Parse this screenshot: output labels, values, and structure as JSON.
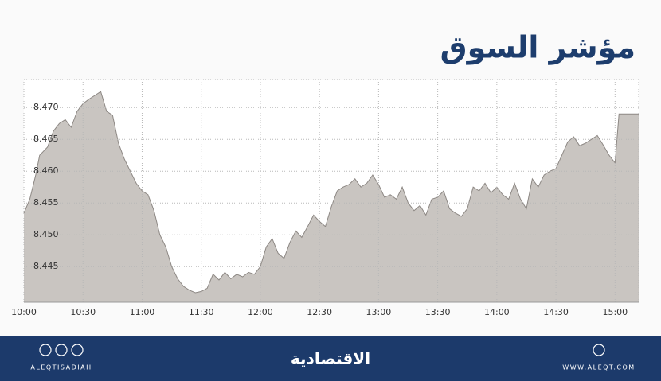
{
  "chart_data": {
    "type": "area",
    "title": "مؤشر السوق",
    "x": [
      "10:00",
      "10:03",
      "10:06",
      "10:08",
      "10:12",
      "10:15",
      "10:18",
      "10:21",
      "10:24",
      "10:27",
      "10:30",
      "10:33",
      "10:36",
      "10:39",
      "10:42",
      "10:45",
      "10:48",
      "10:51",
      "10:54",
      "10:57",
      "11:00",
      "11:03",
      "11:06",
      "11:09",
      "11:12",
      "11:15",
      "11:18",
      "11:21",
      "11:24",
      "11:27",
      "11:30",
      "11:33",
      "11:36",
      "11:39",
      "11:42",
      "11:45",
      "11:48",
      "11:51",
      "11:54",
      "11:57",
      "12:00",
      "12:03",
      "12:06",
      "12:09",
      "12:12",
      "12:15",
      "12:18",
      "12:21",
      "12:24",
      "12:27",
      "12:30",
      "12:33",
      "12:36",
      "12:39",
      "12:42",
      "12:45",
      "12:48",
      "12:51",
      "12:54",
      "12:57",
      "13:00",
      "13:03",
      "13:06",
      "13:09",
      "13:12",
      "13:15",
      "13:18",
      "13:21",
      "13:24",
      "13:27",
      "13:30",
      "13:33",
      "13:36",
      "13:39",
      "13:42",
      "13:45",
      "13:48",
      "13:51",
      "13:54",
      "13:57",
      "14:00",
      "14:03",
      "14:06",
      "14:09",
      "14:12",
      "14:15",
      "14:18",
      "14:21",
      "14:24",
      "14:27",
      "14:30",
      "14:33",
      "14:36",
      "14:39",
      "14:42",
      "14:45",
      "14:48",
      "14:51",
      "14:54",
      "14:57",
      "15:00",
      "15:02",
      "15:12"
    ],
    "values": [
      8.4534,
      8.4556,
      8.4594,
      8.4625,
      8.4638,
      8.4663,
      8.4675,
      8.4681,
      8.4669,
      8.4694,
      8.4706,
      8.4713,
      8.4719,
      8.4725,
      8.4694,
      8.4688,
      8.4644,
      8.4619,
      8.46,
      8.4581,
      8.4569,
      8.4563,
      8.4538,
      8.45,
      8.4481,
      8.445,
      8.4431,
      8.4419,
      8.4413,
      8.4409,
      8.4411,
      8.4416,
      8.4438,
      8.4429,
      8.4441,
      8.4431,
      8.4438,
      8.4434,
      8.4441,
      8.4438,
      8.445,
      8.4481,
      8.4494,
      8.4471,
      8.4463,
      8.4488,
      8.4506,
      8.4496,
      8.4513,
      8.4531,
      8.4521,
      8.4513,
      8.4544,
      8.4569,
      8.4575,
      8.4579,
      8.4588,
      8.4575,
      8.4581,
      8.4594,
      8.4579,
      8.4559,
      8.4563,
      8.4556,
      8.4575,
      8.455,
      8.4538,
      8.4546,
      8.4531,
      8.4556,
      8.4559,
      8.4569,
      8.4541,
      8.4534,
      8.4529,
      8.4541,
      8.4575,
      8.4569,
      8.4581,
      8.4566,
      8.4575,
      8.4563,
      8.4556,
      8.4581,
      8.4556,
      8.4541,
      8.4588,
      8.4575,
      8.4594,
      8.46,
      8.4604,
      8.4625,
      8.4646,
      8.4654,
      8.464,
      8.4644,
      8.465,
      8.4656,
      8.4641,
      8.4625,
      8.4613,
      8.469,
      8.469
    ],
    "color": "#c9c5c1",
    "line_color": "#8d8884",
    "xlim": [
      "10:00",
      "15:12"
    ],
    "xticks": [
      "10:00",
      "10:30",
      "11:00",
      "11:30",
      "12:00",
      "12:30",
      "13:00",
      "13:30",
      "14:00",
      "14:30",
      "15:00"
    ],
    "ylim": [
      8.4394,
      8.4744
    ],
    "yticks": [
      8.445,
      {
        "value": 8.45,
        "label": "8.450"
      },
      8.455,
      {
        "value": 8.46,
        "label": "8.460"
      },
      8.465,
      {
        "value": 8.47,
        "label": "8.470"
      }
    ],
    "grid": true
  },
  "footer": {
    "brand": "الاقتصادية",
    "handle": "ALEQTISADIAH",
    "website": "WWW.ALEQT.COM"
  }
}
